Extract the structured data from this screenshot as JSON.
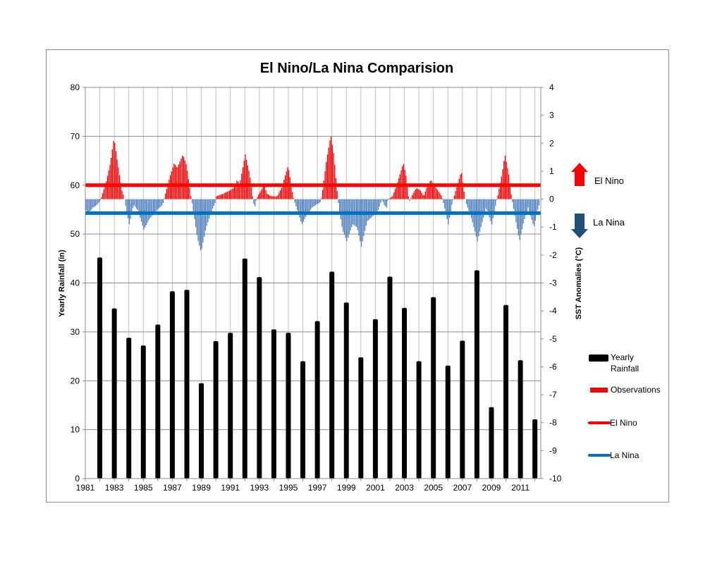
{
  "chart_data": {
    "type": "bar",
    "title": "El Nino/La Nina Comparision",
    "ylabel": "Yearly Rainfall (in)",
    "y2label": "SST Anomalies  (°C)",
    "ylim": [
      0,
      80
    ],
    "y2lim": [
      -10,
      4
    ],
    "xlim": [
      1981,
      2012.4
    ],
    "grid": true,
    "x_tick_labels": [
      "1981",
      "1983",
      "1985",
      "1987",
      "1989",
      "1991",
      "1993",
      "1995",
      "1997",
      "1999",
      "2001",
      "2003",
      "2005",
      "2007",
      "2009",
      "2011"
    ],
    "y_tick_labels": [
      "0",
      "10",
      "20",
      "30",
      "40",
      "50",
      "60",
      "70",
      "80"
    ],
    "y2_tick_labels": [
      "4",
      "3",
      "2",
      "1",
      "0",
      "-1",
      "-2",
      "-3",
      "-4",
      "-5",
      "-6",
      "-7",
      "-8",
      "-9",
      "-10"
    ],
    "rainfall": {
      "name": "Yearly Rainfall",
      "years": [
        1982,
        1983,
        1984,
        1985,
        1986,
        1987,
        1988,
        1989,
        1990,
        1991,
        1992,
        1993,
        1994,
        1995,
        1996,
        1997,
        1998,
        1999,
        2000,
        2001,
        2002,
        2003,
        2004,
        2005,
        2006,
        2007,
        2008,
        2009,
        2010,
        2011,
        2012
      ],
      "values": [
        45.2,
        34.8,
        28.8,
        27.2,
        31.5,
        38.3,
        38.6,
        19.5,
        28.1,
        29.8,
        45.0,
        41.2,
        30.5,
        29.8,
        24.0,
        32.2,
        42.3,
        36.0,
        24.8,
        32.6,
        41.3,
        34.9,
        24.0,
        37.1,
        23.1,
        28.2,
        42.6,
        14.6,
        35.5,
        24.2,
        12.1
      ]
    },
    "sst_observations": {
      "name": "Observations",
      "keypoints": [
        [
          1981.0,
          -0.4
        ],
        [
          1981.2,
          -0.5
        ],
        [
          1981.5,
          -0.3
        ],
        [
          1981.8,
          -0.2
        ],
        [
          1982.0,
          -0.05
        ],
        [
          1982.1,
          0.1
        ],
        [
          1982.4,
          0.6
        ],
        [
          1982.7,
          1.3
        ],
        [
          1982.95,
          2.2
        ],
        [
          1983.2,
          1.3
        ],
        [
          1983.5,
          0.3
        ],
        [
          1983.65,
          0.05
        ],
        [
          1983.7,
          -0.1
        ],
        [
          1984.0,
          -0.9
        ],
        [
          1984.3,
          -0.2
        ],
        [
          1984.6,
          -0.4
        ],
        [
          1985.0,
          -1.1
        ],
        [
          1985.4,
          -0.7
        ],
        [
          1985.9,
          -0.4
        ],
        [
          1986.3,
          -0.2
        ],
        [
          1986.45,
          0.1
        ],
        [
          1986.8,
          0.8
        ],
        [
          1987.1,
          1.3
        ],
        [
          1987.3,
          1.1
        ],
        [
          1987.7,
          1.6
        ],
        [
          1987.95,
          1.2
        ],
        [
          1988.25,
          0.1
        ],
        [
          1988.35,
          -0.2
        ],
        [
          1988.7,
          -1.4
        ],
        [
          1988.95,
          -1.9
        ],
        [
          1989.3,
          -1.0
        ],
        [
          1989.7,
          -0.4
        ],
        [
          1989.95,
          -0.1
        ],
        [
          1990.0,
          0.1
        ],
        [
          1990.5,
          0.2
        ],
        [
          1990.9,
          0.3
        ],
        [
          1991.2,
          0.4
        ],
        [
          1991.45,
          0.7
        ],
        [
          1991.6,
          0.5
        ],
        [
          1992.0,
          1.6
        ],
        [
          1992.3,
          0.9
        ],
        [
          1992.5,
          0.1
        ],
        [
          1992.55,
          -0.1
        ],
        [
          1992.65,
          -0.3
        ],
        [
          1992.75,
          -0.05
        ],
        [
          1992.85,
          0.1
        ],
        [
          1993.3,
          0.5
        ],
        [
          1993.5,
          0.2
        ],
        [
          1993.8,
          0.1
        ],
        [
          1994.2,
          0.1
        ],
        [
          1994.5,
          0.4
        ],
        [
          1994.95,
          1.2
        ],
        [
          1995.3,
          0.1
        ],
        [
          1995.4,
          -0.1
        ],
        [
          1995.9,
          -0.9
        ],
        [
          1996.2,
          -0.6
        ],
        [
          1996.6,
          -0.3
        ],
        [
          1997.2,
          -0.1
        ],
        [
          1997.3,
          0.2
        ],
        [
          1997.6,
          1.4
        ],
        [
          1997.9,
          2.3
        ],
        [
          1998.1,
          1.6
        ],
        [
          1998.35,
          0.2
        ],
        [
          1998.45,
          -0.3
        ],
        [
          1998.7,
          -1.1
        ],
        [
          1999.0,
          -1.5
        ],
        [
          1999.4,
          -0.9
        ],
        [
          1999.7,
          -1.0
        ],
        [
          2000.0,
          -1.7
        ],
        [
          2000.4,
          -0.8
        ],
        [
          2000.8,
          -0.6
        ],
        [
          2001.1,
          -0.5
        ],
        [
          2001.35,
          -0.1
        ],
        [
          2001.45,
          0.0
        ],
        [
          2001.55,
          -0.2
        ],
        [
          2001.75,
          -0.3
        ],
        [
          2001.85,
          0.0
        ],
        [
          2002.15,
          0.1
        ],
        [
          2002.5,
          0.6
        ],
        [
          2002.9,
          1.3
        ],
        [
          2003.1,
          0.8
        ],
        [
          2003.25,
          0.1
        ],
        [
          2003.35,
          -0.1
        ],
        [
          2003.45,
          0.1
        ],
        [
          2003.8,
          0.4
        ],
        [
          2004.1,
          0.3
        ],
        [
          2004.3,
          0.1
        ],
        [
          2004.5,
          0.4
        ],
        [
          2004.8,
          0.7
        ],
        [
          2005.0,
          0.5
        ],
        [
          2005.3,
          0.3
        ],
        [
          2005.55,
          0.1
        ],
        [
          2005.65,
          -0.1
        ],
        [
          2006.0,
          -0.9
        ],
        [
          2006.25,
          -0.2
        ],
        [
          2006.35,
          0.0
        ],
        [
          2006.45,
          0.2
        ],
        [
          2006.9,
          1.0
        ],
        [
          2007.1,
          0.2
        ],
        [
          2007.2,
          -0.1
        ],
        [
          2007.6,
          -0.7
        ],
        [
          2008.0,
          -1.5
        ],
        [
          2008.3,
          -0.9
        ],
        [
          2008.6,
          -0.3
        ],
        [
          2009.0,
          -0.9
        ],
        [
          2009.3,
          -0.1
        ],
        [
          2009.4,
          0.1
        ],
        [
          2009.7,
          0.9
        ],
        [
          2009.9,
          1.6
        ],
        [
          2010.2,
          0.8
        ],
        [
          2010.35,
          0.1
        ],
        [
          2010.45,
          -0.2
        ],
        [
          2010.9,
          -1.5
        ],
        [
          2011.2,
          -0.8
        ],
        [
          2011.5,
          -0.3
        ],
        [
          2011.9,
          -1.0
        ],
        [
          2012.2,
          -0.3
        ],
        [
          2012.33,
          -0.1
        ]
      ]
    },
    "thresholds": [
      {
        "name": "El Nino",
        "value": 0.5,
        "color": "#FF0000"
      },
      {
        "name": "La Nina",
        "value": -0.5,
        "color": "#0070C0"
      }
    ],
    "legend": {
      "placement": "right",
      "entries": [
        {
          "label_line1": "Yearly",
          "label_line2": "Rainfall",
          "color": "#000000"
        },
        {
          "label": "Observations",
          "color": "#FF0000"
        },
        {
          "label": "El Nino",
          "color": "#FF0000"
        },
        {
          "label": "La Nina",
          "color": "#0070C0"
        }
      ]
    },
    "annotations": [
      {
        "label": "El Nino",
        "icon": "arrow-up-icon",
        "color": "#FF0000"
      },
      {
        "label": "La Nina",
        "icon": "arrow-down-icon",
        "color": "#1F4E79"
      }
    ],
    "colors": {
      "positive": "#FF0000",
      "negative": "#4F81BD",
      "grid": "#BFBFBF",
      "hgrid": "#8C8C8C"
    }
  }
}
